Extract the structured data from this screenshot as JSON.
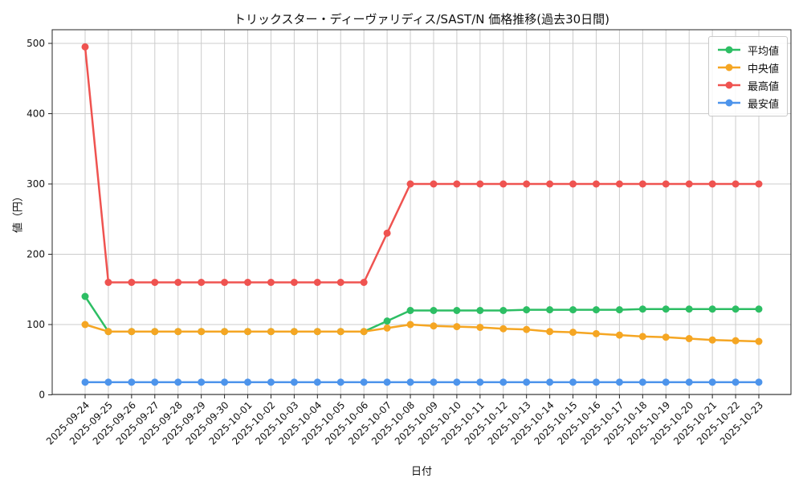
{
  "page": {
    "background": "#ffffff"
  },
  "chart_data": {
    "type": "line",
    "title": "トリックスター・ディーヴァリディス/SAST/N 価格推移(過去30日間)",
    "xlabel": "日付",
    "ylabel": "値（円）",
    "yticks": [
      0,
      100,
      200,
      300,
      400,
      500
    ],
    "ylim": [
      0,
      520
    ],
    "grid": true,
    "legend_position": "upper right",
    "grid_color": "#cccccc",
    "spine_color": "#262626",
    "categories": [
      "2025-09-24",
      "2025-09-25",
      "2025-09-26",
      "2025-09-27",
      "2025-09-28",
      "2025-09-29",
      "2025-09-30",
      "2025-10-01",
      "2025-10-02",
      "2025-10-03",
      "2025-10-04",
      "2025-10-05",
      "2025-10-06",
      "2025-10-07",
      "2025-10-08",
      "2025-10-09",
      "2025-10-10",
      "2025-10-11",
      "2025-10-12",
      "2025-10-13",
      "2025-10-14",
      "2025-10-15",
      "2025-10-16",
      "2025-10-17",
      "2025-10-18",
      "2025-10-19",
      "2025-10-20",
      "2025-10-21",
      "2025-10-22",
      "2025-10-23"
    ],
    "series": [
      {
        "key": "average",
        "name": "平均値",
        "color": "#2DBE64",
        "values": [
          140,
          90,
          90,
          90,
          90,
          90,
          90,
          90,
          90,
          90,
          90,
          90,
          90,
          105,
          120,
          120,
          120,
          120,
          120,
          121,
          121,
          121,
          121,
          121,
          122,
          122,
          122,
          122,
          122,
          122
        ]
      },
      {
        "key": "median",
        "name": "中央値",
        "color": "#F5A623",
        "values": [
          100,
          90,
          90,
          90,
          90,
          90,
          90,
          90,
          90,
          90,
          90,
          90,
          90,
          95,
          100,
          98,
          97,
          96,
          94,
          93,
          90,
          89,
          87,
          85,
          83,
          82,
          80,
          78,
          77,
          76
        ]
      },
      {
        "key": "max",
        "name": "最高値",
        "color": "#EF5350",
        "values": [
          495,
          160,
          160,
          160,
          160,
          160,
          160,
          160,
          160,
          160,
          160,
          160,
          160,
          230,
          300,
          300,
          300,
          300,
          300,
          300,
          300,
          300,
          300,
          300,
          300,
          300,
          300,
          300,
          300,
          300
        ]
      },
      {
        "key": "min",
        "name": "最安値",
        "color": "#4D94EB",
        "values": [
          18,
          18,
          18,
          18,
          18,
          18,
          18,
          18,
          18,
          18,
          18,
          18,
          18,
          18,
          18,
          18,
          18,
          18,
          18,
          18,
          18,
          18,
          18,
          18,
          18,
          18,
          18,
          18,
          18,
          18
        ]
      }
    ]
  }
}
